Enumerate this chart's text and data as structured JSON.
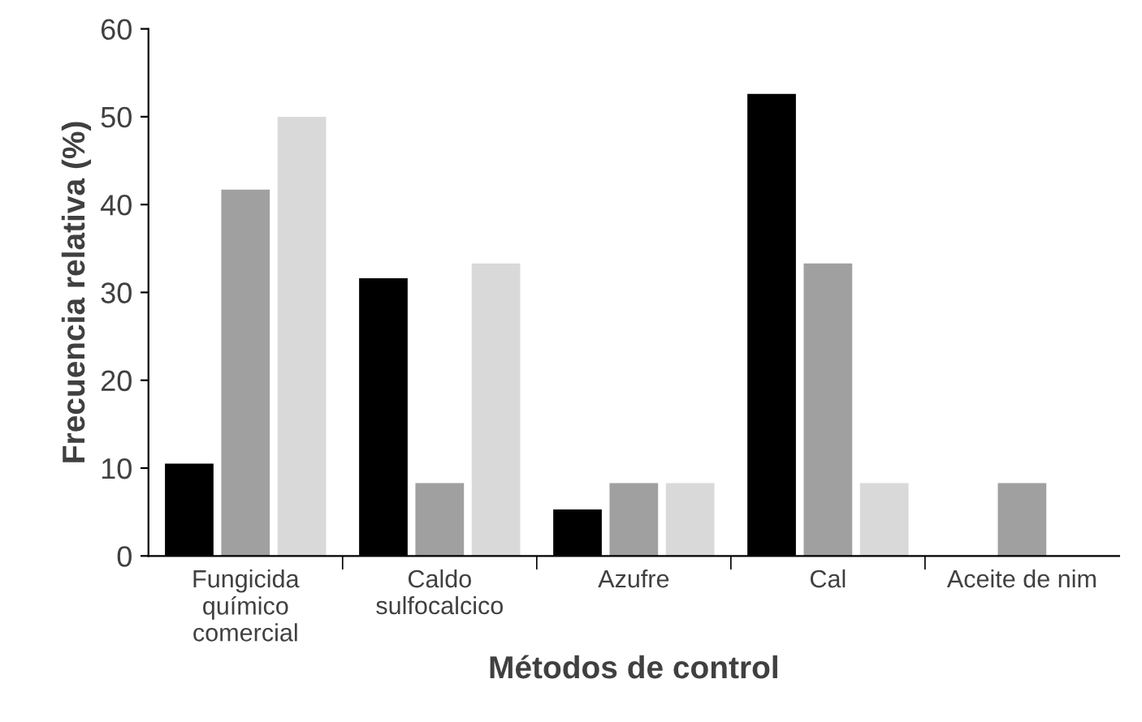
{
  "chart_data": {
    "type": "bar",
    "xlabel": "Métodos de control",
    "ylabel": "Frecuencia relativa (%)",
    "categories": [
      "Fungicida\nquímico\ncomercial",
      "Caldo\nsulfocalcico",
      "Azufre",
      "Cal",
      "Aceite de nim"
    ],
    "series": [
      {
        "color": "#000000",
        "values": [
          10.5,
          31.6,
          5.3,
          52.6,
          0
        ]
      },
      {
        "color": "#a0a0a0",
        "values": [
          41.7,
          8.3,
          8.3,
          33.3,
          8.3
        ]
      },
      {
        "color": "#d9d9d9",
        "values": [
          50,
          33.3,
          8.3,
          8.3,
          0
        ]
      }
    ],
    "ylim": [
      0,
      60
    ],
    "yticks": [
      0,
      10,
      20,
      30,
      40,
      50,
      60
    ],
    "grid": false,
    "legend": false
  }
}
